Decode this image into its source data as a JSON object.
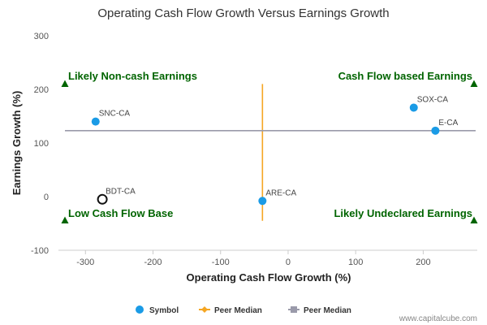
{
  "chart_data": {
    "type": "scatter",
    "title": "Operating Cash Flow Growth Versus Earnings Growth",
    "xlabel": "Operating Cash Flow Growth (%)",
    "ylabel": "Earnings Growth (%)",
    "xlim": [
      -340,
      280
    ],
    "ylim": [
      -100,
      300
    ],
    "x_ticks": [
      -300,
      -200,
      -100,
      0,
      100,
      200
    ],
    "y_ticks": [
      -100,
      0,
      100,
      200,
      300
    ],
    "grid": false,
    "points": [
      {
        "label": "SNC-CA",
        "x": -285,
        "y": 140,
        "style": "filled"
      },
      {
        "label": "BDT-CA",
        "x": -275,
        "y": -5,
        "style": "hollow"
      },
      {
        "label": "ARE-CA",
        "x": -38,
        "y": -8,
        "style": "filled"
      },
      {
        "label": "SOX-CA",
        "x": 186,
        "y": 166,
        "style": "filled"
      },
      {
        "label": "E-CA",
        "x": 218,
        "y": 123,
        "style": "filled"
      }
    ],
    "peer_median_x": -38,
    "peer_median_x_range": [
      -45,
      210
    ],
    "peer_median_y": 123,
    "quadrants": {
      "top_left": "Likely Non-cash Earnings",
      "top_right": "Cash Flow based Earnings",
      "bottom_left": "Low Cash Flow Base",
      "bottom_right": "Likely Undeclared Earnings"
    },
    "legend": [
      {
        "label": "Symbol",
        "marker": "circle"
      },
      {
        "label": "Peer Median",
        "marker": "diamond"
      },
      {
        "label": "Peer Median",
        "marker": "square"
      }
    ],
    "legend_position": "bottom"
  },
  "colors": {
    "point": "#1a9be6",
    "hollow_stroke": "#111111",
    "vertical_median": "#f5a623",
    "horizontal_median": "#9a9aaa",
    "quadrant_text": "#006400",
    "axis": "#cccccc"
  },
  "watermark": "www.capitalcube.com"
}
